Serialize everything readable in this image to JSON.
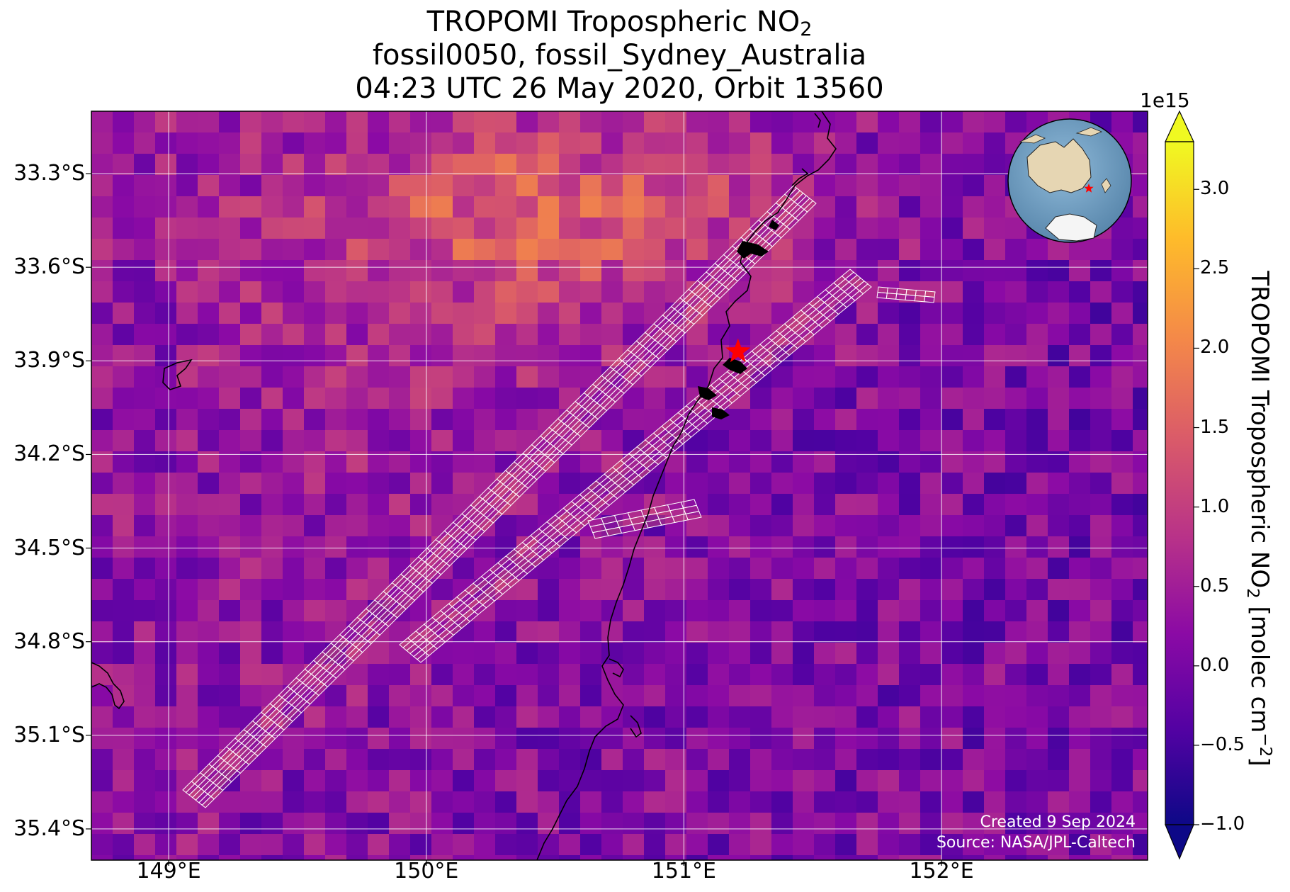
{
  "title": {
    "line1_text": "TROPOMI Tropospheric NO",
    "line1_sub": "2",
    "line2": "fossil0050, fossil_Sydney_Australia",
    "line3": "04:23 UTC 26 May 2020, Orbit 13560"
  },
  "axes": {
    "lat_labels": [
      "33.3°S",
      "33.6°S",
      "33.9°S",
      "34.2°S",
      "34.5°S",
      "34.8°S",
      "35.1°S",
      "35.4°S"
    ],
    "lat_values": [
      -33.3,
      -33.6,
      -33.9,
      -34.2,
      -34.5,
      -34.8,
      -35.1,
      -35.4
    ],
    "lon_labels": [
      "149°E",
      "150°E",
      "151°E",
      "152°E"
    ],
    "lon_values": [
      149,
      150,
      151,
      152
    ],
    "lon_range": [
      148.7,
      152.8
    ],
    "lat_range": [
      -35.5,
      -33.1
    ],
    "gridlines": true
  },
  "colorbar": {
    "exponent_label": "1e15",
    "tick_labels": [
      "3.0",
      "2.5",
      "2.0",
      "1.5",
      "1.0",
      "0.5",
      "0.0",
      "−0.5",
      "−1.0"
    ],
    "tick_values": [
      3.0,
      2.5,
      2.0,
      1.5,
      1.0,
      0.5,
      0.0,
      -0.5,
      -1.0
    ],
    "range": [
      -1.0,
      3.3
    ],
    "extend": "both",
    "label_text": "TROPOMI Tropospheric NO",
    "label_sub": "2",
    "label_units": " [molec cm",
    "label_sup": "−2",
    "label_end": "]",
    "colormap": "plasma",
    "stops": [
      "#0d0887",
      "#5302a3",
      "#8b0aa5",
      "#b83289",
      "#db5c68",
      "#f48849",
      "#febc2a",
      "#f0f921"
    ]
  },
  "target": {
    "marker": "red-star",
    "color": "#ff0000",
    "lon": 151.21,
    "lat": -33.87
  },
  "credits": {
    "created": "Created 9 Sep 2024",
    "source": "Source: NASA/JPL-Caltech"
  },
  "inset": {
    "type": "globe",
    "ocean_color": "#6e9ec2",
    "marker_color": "#ff0000"
  }
}
